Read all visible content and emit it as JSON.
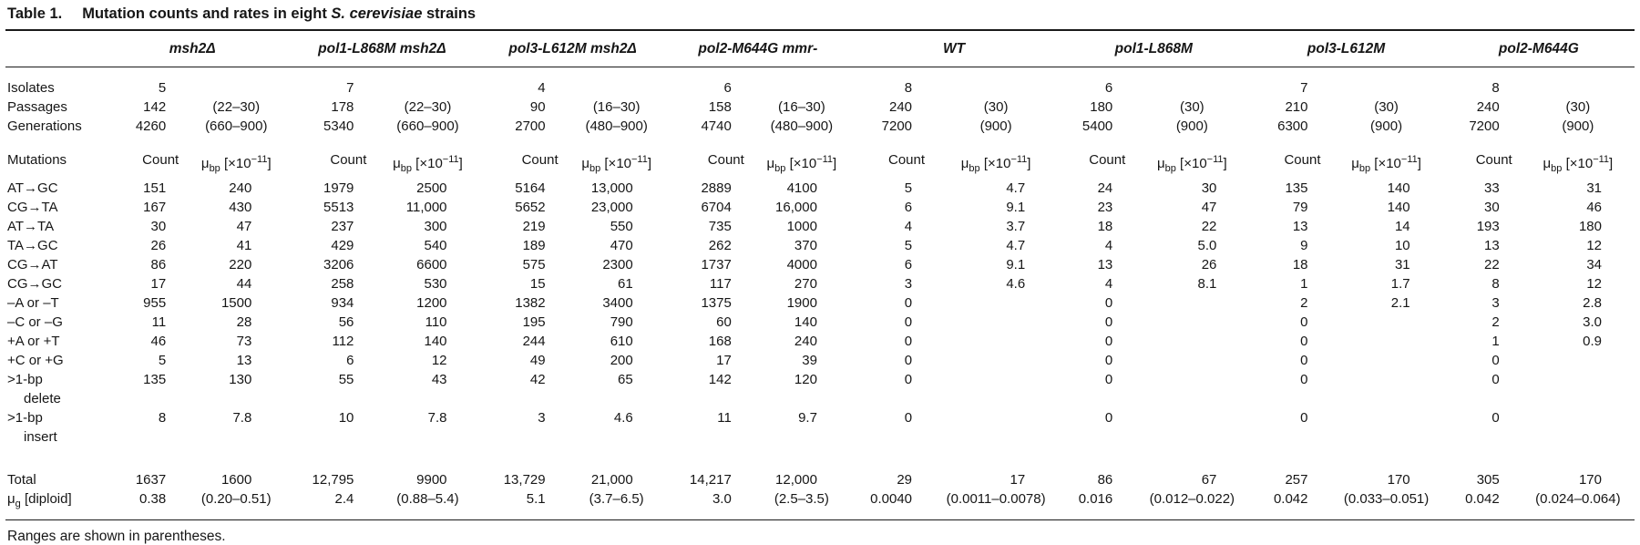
{
  "title": {
    "label": "Table 1.",
    "before": "Mutation counts and rates in eight ",
    "species": "S. cerevisiae",
    "after": " strains"
  },
  "strains": [
    "msh2Δ",
    "pol1-L868M msh2Δ",
    "pol3-L612M msh2Δ",
    "pol2-M644G mmr-",
    "WT",
    "pol1-L868M",
    "pol3-L612M",
    "pol2-M644G"
  ],
  "summary_rows": [
    {
      "name": "isolates",
      "label": "Isolates",
      "values": [
        [
          "5",
          ""
        ],
        [
          "7",
          ""
        ],
        [
          "4",
          ""
        ],
        [
          "6",
          ""
        ],
        [
          "8",
          ""
        ],
        [
          "6",
          ""
        ],
        [
          "7",
          ""
        ],
        [
          "8",
          ""
        ]
      ]
    },
    {
      "name": "passages",
      "label": "Passages",
      "values": [
        [
          "142",
          "(22–30)"
        ],
        [
          "178",
          "(22–30)"
        ],
        [
          "90",
          "(16–30)"
        ],
        [
          "158",
          "(16–30)"
        ],
        [
          "240",
          "(30)"
        ],
        [
          "180",
          "(30)"
        ],
        [
          "210",
          "(30)"
        ],
        [
          "240",
          "(30)"
        ]
      ]
    },
    {
      "name": "generations",
      "label": "Generations",
      "values": [
        [
          "4260",
          "(660–900)"
        ],
        [
          "5340",
          "(660–900)"
        ],
        [
          "2700",
          "(480–900)"
        ],
        [
          "4740",
          "(480–900)"
        ],
        [
          "7200",
          "(900)"
        ],
        [
          "5400",
          "(900)"
        ],
        [
          "6300",
          "(900)"
        ],
        [
          "7200",
          "(900)"
        ]
      ]
    }
  ],
  "subheader": {
    "label": "Mutations",
    "count": "Count",
    "rate": {
      "mu": "μ",
      "sub": "bp",
      "mid": " [×10",
      "sup": "−11",
      "end": "]"
    }
  },
  "mutation_rows": [
    {
      "name": "at-gc",
      "label": "AT→GC",
      "values": [
        [
          "151",
          "240"
        ],
        [
          "1979",
          "2500"
        ],
        [
          "5164",
          "13,000"
        ],
        [
          "2889",
          "4100"
        ],
        [
          "5",
          "4.7"
        ],
        [
          "24",
          "30"
        ],
        [
          "135",
          "140"
        ],
        [
          "33",
          "31"
        ]
      ]
    },
    {
      "name": "cg-ta",
      "label": "CG→TA",
      "values": [
        [
          "167",
          "430"
        ],
        [
          "5513",
          "11,000"
        ],
        [
          "5652",
          "23,000"
        ],
        [
          "6704",
          "16,000"
        ],
        [
          "6",
          "9.1"
        ],
        [
          "23",
          "47"
        ],
        [
          "79",
          "140"
        ],
        [
          "30",
          "46"
        ]
      ]
    },
    {
      "name": "at-ta",
      "label": "AT→TA",
      "values": [
        [
          "30",
          "47"
        ],
        [
          "237",
          "300"
        ],
        [
          "219",
          "550"
        ],
        [
          "735",
          "1000"
        ],
        [
          "4",
          "3.7"
        ],
        [
          "18",
          "22"
        ],
        [
          "13",
          "14"
        ],
        [
          "193",
          "180"
        ]
      ]
    },
    {
      "name": "ta-gc",
      "label": "TA→GC",
      "values": [
        [
          "26",
          "41"
        ],
        [
          "429",
          "540"
        ],
        [
          "189",
          "470"
        ],
        [
          "262",
          "370"
        ],
        [
          "5",
          "4.7"
        ],
        [
          "4",
          "5.0"
        ],
        [
          "9",
          "10"
        ],
        [
          "13",
          "12"
        ]
      ]
    },
    {
      "name": "cg-at",
      "label": "CG→AT",
      "values": [
        [
          "86",
          "220"
        ],
        [
          "3206",
          "6600"
        ],
        [
          "575",
          "2300"
        ],
        [
          "1737",
          "4000"
        ],
        [
          "6",
          "9.1"
        ],
        [
          "13",
          "26"
        ],
        [
          "18",
          "31"
        ],
        [
          "22",
          "34"
        ]
      ]
    },
    {
      "name": "cg-gc",
      "label": "CG→GC",
      "values": [
        [
          "17",
          "44"
        ],
        [
          "258",
          "530"
        ],
        [
          "15",
          "61"
        ],
        [
          "117",
          "270"
        ],
        [
          "3",
          "4.6"
        ],
        [
          "4",
          "8.1"
        ],
        [
          "1",
          "1.7"
        ],
        [
          "8",
          "12"
        ]
      ]
    },
    {
      "name": "del-a-t",
      "label": "–A or –T",
      "values": [
        [
          "955",
          "1500"
        ],
        [
          "934",
          "1200"
        ],
        [
          "1382",
          "3400"
        ],
        [
          "1375",
          "1900"
        ],
        [
          "0",
          ""
        ],
        [
          "0",
          ""
        ],
        [
          "2",
          "2.1"
        ],
        [
          "3",
          "2.8"
        ]
      ]
    },
    {
      "name": "del-c-g",
      "label": "–C or –G",
      "values": [
        [
          "11",
          "28"
        ],
        [
          "56",
          "110"
        ],
        [
          "195",
          "790"
        ],
        [
          "60",
          "140"
        ],
        [
          "0",
          ""
        ],
        [
          "0",
          ""
        ],
        [
          "0",
          ""
        ],
        [
          "2",
          "3.0"
        ]
      ]
    },
    {
      "name": "ins-a-t",
      "label": "+A or +T",
      "values": [
        [
          "46",
          "73"
        ],
        [
          "112",
          "140"
        ],
        [
          "244",
          "610"
        ],
        [
          "168",
          "240"
        ],
        [
          "0",
          ""
        ],
        [
          "0",
          ""
        ],
        [
          "0",
          ""
        ],
        [
          "1",
          "0.9"
        ]
      ]
    },
    {
      "name": "ins-c-g",
      "label": "+C or +G",
      "values": [
        [
          "5",
          "13"
        ],
        [
          "6",
          "12"
        ],
        [
          "49",
          "200"
        ],
        [
          "17",
          "39"
        ],
        [
          "0",
          ""
        ],
        [
          "0",
          ""
        ],
        [
          "0",
          ""
        ],
        [
          "0",
          ""
        ]
      ]
    },
    {
      "name": "gt1bp-delete",
      "label": {
        "line1": ">1-bp",
        "line2": "delete"
      },
      "values": [
        [
          "135",
          "130"
        ],
        [
          "55",
          "43"
        ],
        [
          "42",
          "65"
        ],
        [
          "142",
          "120"
        ],
        [
          "0",
          ""
        ],
        [
          "0",
          ""
        ],
        [
          "0",
          ""
        ],
        [
          "0",
          ""
        ]
      ]
    },
    {
      "name": "gt1bp-insert",
      "label": {
        "line1": ">1-bp",
        "line2": "insert"
      },
      "values": [
        [
          "8",
          "7.8"
        ],
        [
          "10",
          "7.8"
        ],
        [
          "3",
          "4.6"
        ],
        [
          "11",
          "9.7"
        ],
        [
          "0",
          ""
        ],
        [
          "0",
          ""
        ],
        [
          "0",
          ""
        ],
        [
          "0",
          ""
        ]
      ]
    }
  ],
  "total_row": {
    "label": "Total",
    "values": [
      [
        "1637",
        "1600"
      ],
      [
        "12,795",
        "9900"
      ],
      [
        "13,729",
        "21,000"
      ],
      [
        "14,217",
        "12,000"
      ],
      [
        "29",
        "17"
      ],
      [
        "86",
        "67"
      ],
      [
        "257",
        "170"
      ],
      [
        "305",
        "170"
      ]
    ]
  },
  "mu_g_row": {
    "label": {
      "mu": "μ",
      "sub": "g",
      "rest": " [diploid]"
    },
    "values": [
      [
        "0.38",
        "(0.20–0.51)"
      ],
      [
        "2.4",
        "(0.88–5.4)"
      ],
      [
        "5.1",
        "(3.7–6.5)"
      ],
      [
        "3.0",
        "(2.5–3.5)"
      ],
      [
        "0.0040",
        "(0.0011–0.0078)"
      ],
      [
        "0.016",
        "(0.012–0.022)"
      ],
      [
        "0.042",
        "(0.033–0.051)"
      ],
      [
        "0.042",
        "(0.024–0.064)"
      ]
    ]
  },
  "footnote": "Ranges are shown in parentheses."
}
